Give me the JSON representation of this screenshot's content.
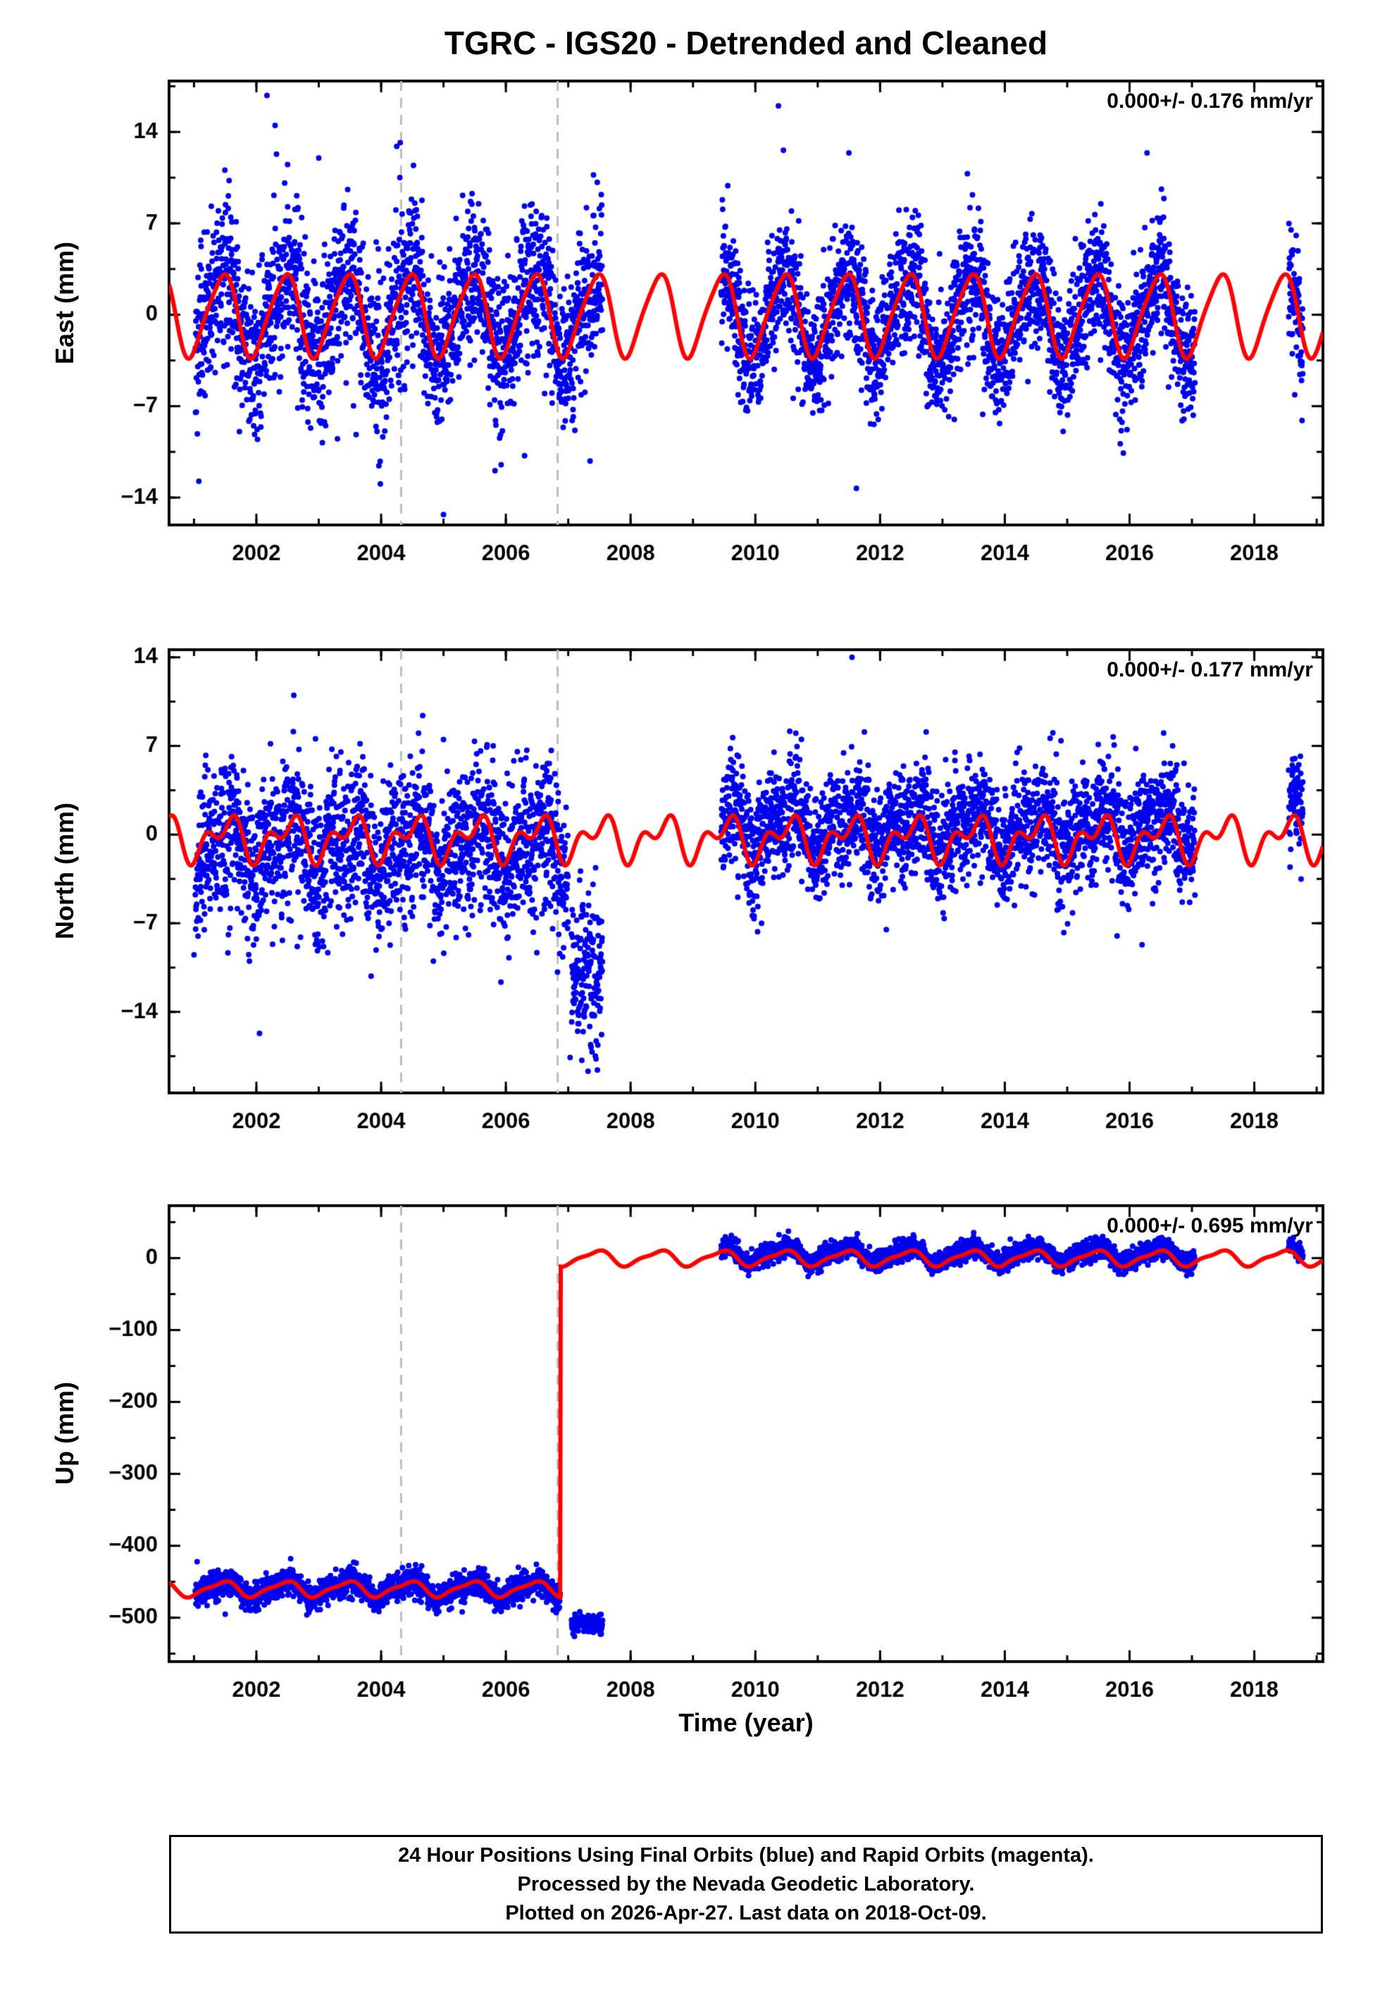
{
  "title": "TGRC - IGS20 - Detrended and Cleaned",
  "xlabel": "Time (year)",
  "footer_lines": [
    "24 Hour Positions Using Final Orbits (blue) and Rapid Orbits (magenta).",
    "Processed by the Nevada Geodetic Laboratory.",
    "Plotted on 2026-Apr-27. Last data on 2018-Oct-09."
  ],
  "colors": {
    "points": "#0000ee",
    "model": "#ff0000",
    "dashed_line": "#bcbcbc",
    "frame": "#000000"
  },
  "chart_data": [
    {
      "type": "scatter",
      "ylabel": "East (mm)",
      "annotation": "0.000+/- 0.176 mm/yr",
      "xlim": [
        2000.6,
        2019.1
      ],
      "ylim": [
        -16.1,
        17.9
      ],
      "xticks": [
        2002,
        2004,
        2006,
        2008,
        2010,
        2012,
        2014,
        2016,
        2018
      ],
      "x_minor_step": 1,
      "yticks": [
        -14,
        -7,
        0,
        7,
        14
      ],
      "y_minor_step": 3.5,
      "dashed_vlines": [
        2004.32,
        2006.83
      ],
      "model": {
        "annual_amp": 3.1,
        "annual_phase": 0.45,
        "semi_amp": 0.5,
        "semi_phase": 0.1,
        "segments": [
          {
            "t0": 2000.6,
            "t1": 2019.1,
            "mean": 0
          }
        ]
      },
      "scatter_segments": [
        {
          "t0": 2001.02,
          "t1": 2007.55,
          "per_year": 330,
          "sd": 3.0,
          "base": 0,
          "relative_to_model": true
        },
        {
          "t0": 2009.45,
          "t1": 2017.05,
          "per_year": 330,
          "sd": 2.4,
          "base": -0.2,
          "relative_to_model": true
        },
        {
          "t0": 2018.55,
          "t1": 2018.78,
          "per_year": 330,
          "sd": 2.2,
          "base": -0.5,
          "relative_to_model": true
        }
      ],
      "outliers": [
        [
          2002.17,
          16.8
        ],
        [
          2002.3,
          14.5
        ],
        [
          2002.5,
          11.5
        ],
        [
          2003.0,
          12.0
        ],
        [
          2004.25,
          12.9
        ],
        [
          2004.3,
          10.5
        ],
        [
          2005.0,
          -15.3
        ],
        [
          2003.3,
          -9.5
        ],
        [
          2006.3,
          -10.8
        ],
        [
          2007.35,
          -11.2
        ],
        [
          2010.37,
          16.0
        ],
        [
          2010.45,
          12.6
        ],
        [
          2011.5,
          12.4
        ],
        [
          2013.4,
          10.8
        ],
        [
          2016.28,
          12.4
        ],
        [
          2016.55,
          8.9
        ],
        [
          2011.62,
          -13.3
        ],
        [
          2015.9,
          -10.6
        ],
        [
          2013.1,
          -7.8
        ],
        [
          2018.7,
          4.9
        ]
      ]
    },
    {
      "type": "scatter",
      "ylabel": "North (mm)",
      "annotation": "0.000+/- 0.177 mm/yr",
      "xlim": [
        2000.6,
        2019.1
      ],
      "ylim": [
        -20.4,
        14.6
      ],
      "xticks": [
        2002,
        2004,
        2006,
        2008,
        2010,
        2012,
        2014,
        2016,
        2018
      ],
      "x_minor_step": 1,
      "yticks": [
        -14,
        -7,
        0,
        7,
        14
      ],
      "y_minor_step": 3.5,
      "dashed_vlines": [
        2004.32,
        2006.83
      ],
      "model": {
        "annual_amp": 1.3,
        "annual_phase": 0.52,
        "semi_amp": 1.0,
        "semi_phase": 0.18,
        "segments": [
          {
            "t0": 2000.6,
            "t1": 2019.1,
            "mean": -0.3
          }
        ]
      },
      "scatter_segments": [
        {
          "t0": 2001.02,
          "t1": 2007.0,
          "per_year": 330,
          "sd": 3.0,
          "base": -0.8,
          "relative_to_model": true
        },
        {
          "t0": 2007.05,
          "t1": 2007.55,
          "per_year": 330,
          "sd": 3.0,
          "base": -11,
          "relative_to_model": false
        },
        {
          "t0": 2009.45,
          "t1": 2017.05,
          "per_year": 330,
          "sd": 2.2,
          "base": 0.8,
          "relative_to_model": true
        },
        {
          "t0": 2018.55,
          "t1": 2018.78,
          "per_year": 330,
          "sd": 1.8,
          "base": 1.2,
          "relative_to_model": true
        }
      ],
      "outliers": [
        [
          2001.0,
          -9.5
        ],
        [
          2002.05,
          -15.7
        ],
        [
          2002.6,
          11.0
        ],
        [
          2004.6,
          8.0
        ],
        [
          2005.0,
          7.5
        ],
        [
          2011.55,
          14.0
        ],
        [
          2009.6,
          6.8
        ],
        [
          2010.3,
          6.5
        ],
        [
          2013.2,
          6.5
        ],
        [
          2016.1,
          6.8
        ],
        [
          2016.2,
          -8.7
        ],
        [
          2015.8,
          -8.0
        ],
        [
          2007.03,
          -17.6
        ],
        [
          2018.65,
          6.0
        ],
        [
          2012.1,
          -7.5
        ],
        [
          2010.1,
          -7.0
        ]
      ]
    },
    {
      "type": "scatter",
      "ylabel": "Up (mm)",
      "annotation": "0.000+/- 0.695 mm/yr",
      "xlim": [
        2000.6,
        2019.1
      ],
      "ylim": [
        -561,
        72.9
      ],
      "xticks": [
        2002,
        2004,
        2006,
        2008,
        2010,
        2012,
        2014,
        2016,
        2018
      ],
      "x_minor_step": 1,
      "yticks": [
        0,
        -100,
        -200,
        -300,
        -400,
        -500
      ],
      "y_minor_step": 50,
      "dashed_vlines": [
        2004.32,
        2006.83
      ],
      "model": {
        "annual_amp": 10,
        "annual_phase": 0.45,
        "semi_amp": 3,
        "semi_phase": 0.1,
        "segments": [
          {
            "t0": 2000.6,
            "t1": 2006.87,
            "mean": -460
          },
          {
            "t0": 2006.87,
            "t1": 2019.1,
            "mean": 0
          }
        ]
      },
      "scatter_segments": [
        {
          "t0": 2001.02,
          "t1": 2006.87,
          "per_year": 330,
          "sd": 9,
          "base": 0,
          "relative_to_model": true
        },
        {
          "t0": 2007.05,
          "t1": 2007.55,
          "per_year": 330,
          "sd": 6,
          "base": -508,
          "relative_to_model": false
        },
        {
          "t0": 2009.45,
          "t1": 2017.05,
          "per_year": 330,
          "sd": 7,
          "base": 5,
          "relative_to_model": true
        },
        {
          "t0": 2018.55,
          "t1": 2018.78,
          "per_year": 330,
          "sd": 5,
          "base": 8,
          "relative_to_model": true
        }
      ],
      "outliers": [
        [
          2001.05,
          -422
        ],
        [
          2002.55,
          -418
        ],
        [
          2003.6,
          -424
        ],
        [
          2004.65,
          -428
        ],
        [
          2006.2,
          -430
        ],
        [
          2001.5,
          -495
        ],
        [
          2005.3,
          -492
        ],
        [
          2007.1,
          -526
        ],
        [
          2010.5,
          28
        ],
        [
          2013.3,
          26
        ],
        [
          2016.5,
          27
        ]
      ]
    }
  ]
}
